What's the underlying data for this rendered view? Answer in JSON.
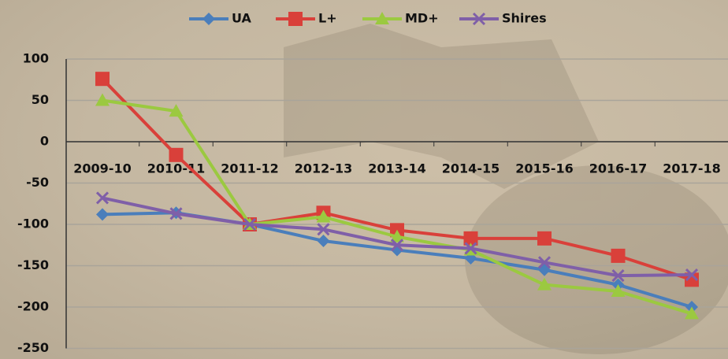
{
  "chart_data": {
    "type": "line",
    "categories": [
      "2009-10",
      "2010-11",
      "2011-12",
      "2012-13",
      "2013-14",
      "2014-15",
      "2015-16",
      "2016-17",
      "2017-18"
    ],
    "series": [
      {
        "name": "UA",
        "color": "#4a7ebb",
        "marker": "diamond",
        "values": [
          -88,
          -86,
          -100,
          -120,
          -131,
          -141,
          -155,
          -173,
          -200
        ]
      },
      {
        "name": "L+",
        "color": "#d9403a",
        "marker": "square",
        "values": [
          76,
          -16,
          -100,
          -86,
          -107,
          -117,
          -117,
          -138,
          -167
        ]
      },
      {
        "name": "MD+",
        "color": "#9bc940",
        "marker": "triangle",
        "values": [
          50,
          37,
          -100,
          -91,
          -115,
          -131,
          -173,
          -181,
          -208
        ]
      },
      {
        "name": "Shires",
        "color": "#7f5fa8",
        "marker": "x",
        "values": [
          -68,
          -87,
          -100,
          -106,
          -125,
          -129,
          -146,
          -162,
          -161
        ]
      }
    ],
    "ylim": [
      -250,
      100
    ],
    "yticks": [
      -250,
      -200,
      -150,
      -100,
      -50,
      0,
      50,
      100
    ],
    "grid": true,
    "legend": "top"
  }
}
